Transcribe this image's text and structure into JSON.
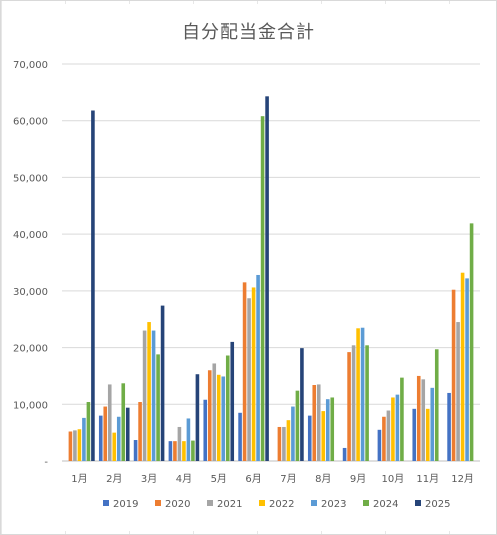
{
  "chart_data": {
    "type": "bar",
    "title": "自分配当金合計",
    "xlabel": "",
    "ylabel": "",
    "ylim": [
      0,
      70000
    ],
    "yticks": [
      "-",
      "10,000",
      "20,000",
      "30,000",
      "40,000",
      "50,000",
      "60,000",
      "70,000"
    ],
    "categories": [
      "1月",
      "2月",
      "3月",
      "4月",
      "5月",
      "6月",
      "7月",
      "8月",
      "9月",
      "10月",
      "11月",
      "12月"
    ],
    "grid": true,
    "legend_position": "bottom",
    "series": [
      {
        "name": "2019",
        "color": "#4472C4",
        "values": [
          0,
          8000,
          3700,
          3500,
          10800,
          8500,
          0,
          8000,
          2300,
          5500,
          9200,
          12000
        ]
      },
      {
        "name": "2020",
        "color": "#ED7D31",
        "values": [
          5200,
          9600,
          10400,
          3500,
          16000,
          31500,
          6000,
          13400,
          19200,
          7800,
          15000,
          30200
        ]
      },
      {
        "name": "2021",
        "color": "#A5A5A5",
        "values": [
          5400,
          13500,
          23000,
          6000,
          17200,
          28700,
          6000,
          13500,
          20400,
          8900,
          14400,
          24500
        ]
      },
      {
        "name": "2022",
        "color": "#FFC000",
        "values": [
          5600,
          5000,
          24500,
          3500,
          15200,
          30600,
          7200,
          8800,
          23400,
          11200,
          9200,
          33200
        ]
      },
      {
        "name": "2023",
        "color": "#5B9BD5",
        "values": [
          7600,
          7800,
          23000,
          7500,
          14900,
          32800,
          9600,
          10900,
          23500,
          11700,
          12900,
          32200
        ]
      },
      {
        "name": "2024",
        "color": "#70AD47",
        "values": [
          10400,
          13700,
          18800,
          3600,
          18600,
          60800,
          12400,
          11200,
          20400,
          14700,
          19700,
          41900
        ]
      },
      {
        "name": "2025",
        "color": "#264478",
        "values": [
          61800,
          9400,
          27400,
          15300,
          21000,
          64300,
          19900,
          0,
          0,
          0,
          0,
          0
        ]
      }
    ]
  }
}
